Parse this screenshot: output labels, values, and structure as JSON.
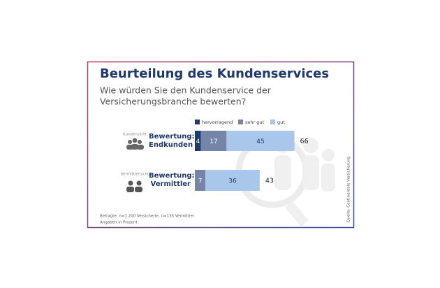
{
  "chart_data": {
    "type": "stacked-bar-horizontal",
    "title": "Beurteilung des Kundenservices",
    "subtitle": [
      "Wie würden Sie den Kundenservice der",
      "Versicherungsbranche bewerten?"
    ],
    "group_labels": [
      "Kundensicht",
      "Vermittlersicht"
    ],
    "categories": [
      "Bewertung: Endkunden",
      "Bewertung: Vermittler"
    ],
    "series": [
      {
        "name": "hervorragend",
        "color": "#1f3a6b",
        "values": [
          4,
          null
        ]
      },
      {
        "name": "sehr gut",
        "color": "#7585a8",
        "values": [
          17,
          7
        ]
      },
      {
        "name": "gut",
        "color": "#a9c7ea",
        "values": [
          45,
          36
        ]
      }
    ],
    "totals": [
      66,
      43
    ],
    "notes": [
      "Befragte: n=1.200 Versicherte, n=135 Vermittler",
      "Angaben in Prozent"
    ],
    "source": "Quelle: Continentale Versicherung"
  }
}
